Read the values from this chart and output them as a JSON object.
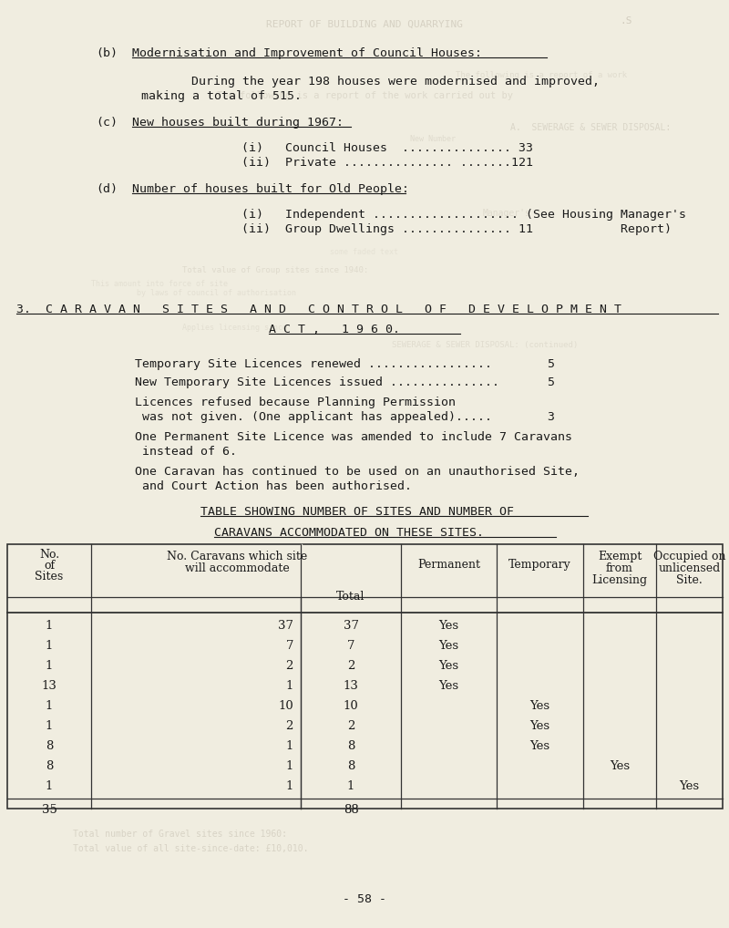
{
  "bg_color": "#f0ede0",
  "text_color": "#1a1a1a",
  "faded_color": "#9a9080",
  "section_b_label": "(b)",
  "section_b_title": "Modernisation and Improvement of Council Houses:",
  "section_b_line1": "During the year 198 houses were modernised and improved,",
  "section_b_line2": "making a total of 515.",
  "section_c_label": "(c)",
  "section_c_title": "New houses built during 1967:",
  "section_c_i": "(i)   Council Houses  ............... 33",
  "section_c_ii": "(ii)  Private ............... .......121",
  "section_d_label": "(d)",
  "section_d_title": "Number of houses built for Old People:",
  "section_d_i": "(i)   Independent .................... (See Housing Manager's",
  "section_d_ii": "(ii)  Group Dwellings ............... 11            Report)",
  "section3_line1": "3.  C A R A V A N   S I T E S   A N D   C O N T R O L   O F   D E V E L O P M E N T",
  "section3_line2": "A C T ,   1 9 6 0.",
  "lic1": "Temporary Site Licences renewed .................",
  "lic1_num": "5",
  "lic2": "New Temporary Site Licences issued ...............",
  "lic2_num": "5",
  "lic3a": "Licences refused because Planning Permission",
  "lic3b": " was not given. (One applicant has appealed).....",
  "lic3_num": "3",
  "lic4a": "One Permanent Site Licence was amended to include 7 Caravans",
  "lic4b": " instead of 6.",
  "lic5a": "One Caravan has continued to be used on an unauthorised Site,",
  "lic5b": " and Court Action has been authorised.",
  "tbl_title1": "TABLE SHOWING NUMBER OF SITES AND NUMBER OF",
  "tbl_title2": "CARAVANS ACCOMMODATED ON THESE SITES.",
  "table_rows": [
    [
      "1",
      "37",
      "37",
      "Yes",
      "",
      "",
      ""
    ],
    [
      "1",
      "7",
      "7",
      "Yes",
      "",
      "",
      ""
    ],
    [
      "1",
      "2",
      "2",
      "Yes",
      "",
      "",
      ""
    ],
    [
      "13",
      "1",
      "13",
      "Yes",
      "",
      "",
      ""
    ],
    [
      "1",
      "10",
      "10",
      "",
      "Yes",
      "",
      ""
    ],
    [
      "1",
      "2",
      "2",
      "",
      "Yes",
      "",
      ""
    ],
    [
      "8",
      "1",
      "8",
      "",
      "Yes",
      "",
      ""
    ],
    [
      "8",
      "1",
      "8",
      "",
      "",
      "Yes",
      ""
    ],
    [
      "1",
      "1",
      "1",
      "",
      "",
      "",
      "Yes"
    ]
  ],
  "table_total_sites": "35",
  "table_total_total": "88",
  "page_num": "- 58 -",
  "ghost_top": "REPORT OF BUILDING AND QUARRYING",
  "ghost_diag": ".S",
  "ghost_mid1": "The following is a report of the work carried out by",
  "ghost_mid2": "A.  SEWERAGE & SEWER DISPOSAL:",
  "ghost_mid3": "SEWERAGE & SEWER DISPOSAL: (continued)"
}
